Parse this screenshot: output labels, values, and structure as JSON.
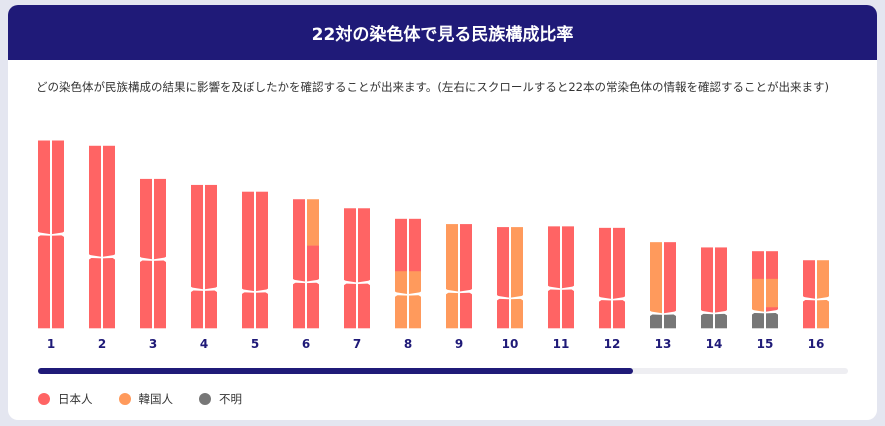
{
  "title": "22対の染色体で見る民族構成比率",
  "description": "どの染色体が民族構成の結果に影響を及ぼしたかを確認することが出来ます。(左右にスクロールすると22本の常染色体の情報を確認することが出来ます)",
  "colors": {
    "japanese": "#ff6464",
    "korean": "#ff9a5c",
    "unknown": "#777777",
    "header": "#1f1a78"
  },
  "legend": [
    {
      "key": "japanese",
      "label": "日本人"
    },
    {
      "key": "korean",
      "label": "韓国人"
    },
    {
      "key": "unknown",
      "label": "不明"
    }
  ],
  "scroll": {
    "visible_fraction": 0.734,
    "position": 0
  },
  "chart_data": {
    "type": "chromosome-ancestry",
    "length_unit": "Mb",
    "chromosomes": [
      {
        "label": "1",
        "length": 249,
        "centromere": 0.5,
        "chromatids": [
          [
            [
              "japanese",
              1
            ]
          ],
          [
            [
              "japanese",
              1
            ]
          ]
        ]
      },
      {
        "label": "2",
        "length": 242,
        "centromere": 0.61,
        "chromatids": [
          [
            [
              "japanese",
              1
            ]
          ],
          [
            [
              "japanese",
              1
            ]
          ]
        ]
      },
      {
        "label": "3",
        "length": 198,
        "centromere": 0.54,
        "chromatids": [
          [
            [
              "japanese",
              1
            ]
          ],
          [
            [
              "japanese",
              1
            ]
          ]
        ]
      },
      {
        "label": "4",
        "length": 190,
        "centromere": 0.73,
        "chromatids": [
          [
            [
              "japanese",
              1
            ]
          ],
          [
            [
              "japanese",
              1
            ]
          ]
        ]
      },
      {
        "label": "5",
        "length": 181,
        "centromere": 0.73,
        "chromatids": [
          [
            [
              "japanese",
              1
            ]
          ],
          [
            [
              "japanese",
              1
            ]
          ]
        ]
      },
      {
        "label": "6",
        "length": 171,
        "centromere": 0.64,
        "chromatids": [
          [
            [
              "japanese",
              1
            ]
          ],
          [
            [
              "korean",
              0.36
            ],
            [
              "japanese",
              1
            ]
          ]
        ]
      },
      {
        "label": "7",
        "length": 159,
        "centromere": 0.62,
        "chromatids": [
          [
            [
              "japanese",
              1
            ]
          ],
          [
            [
              "japanese",
              1
            ]
          ]
        ]
      },
      {
        "label": "8",
        "length": 145,
        "centromere": 0.69,
        "chromatids": [
          [
            [
              "japanese",
              0.48
            ],
            [
              "korean",
              1
            ]
          ],
          [
            [
              "japanese",
              0.48
            ],
            [
              "korean",
              1
            ]
          ]
        ]
      },
      {
        "label": "9",
        "length": 138,
        "centromere": 0.65,
        "chromatids": [
          [
            [
              "korean",
              1
            ]
          ],
          [
            [
              "japanese",
              1
            ]
          ]
        ]
      },
      {
        "label": "10",
        "length": 134,
        "centromere": 0.7,
        "chromatids": [
          [
            [
              "japanese",
              1
            ]
          ],
          [
            [
              "korean",
              1
            ]
          ]
        ]
      },
      {
        "label": "11",
        "length": 135,
        "centromere": 0.61,
        "chromatids": [
          [
            [
              "japanese",
              1
            ]
          ],
          [
            [
              "japanese",
              1
            ]
          ]
        ]
      },
      {
        "label": "12",
        "length": 133,
        "centromere": 0.71,
        "chromatids": [
          [
            [
              "japanese",
              1
            ]
          ],
          [
            [
              "japanese",
              1
            ]
          ]
        ]
      },
      {
        "label": "13",
        "length": 114,
        "centromere": 0.83,
        "chromatids": [
          [
            [
              "korean",
              0.83
            ],
            [
              "unknown",
              1
            ]
          ],
          [
            [
              "japanese",
              0.83
            ],
            [
              "unknown",
              1
            ]
          ]
        ]
      },
      {
        "label": "14",
        "length": 107,
        "centromere": 0.81,
        "chromatids": [
          [
            [
              "japanese",
              0.81
            ],
            [
              "unknown",
              1
            ]
          ],
          [
            [
              "japanese",
              0.81
            ],
            [
              "unknown",
              1
            ]
          ]
        ]
      },
      {
        "label": "15",
        "length": 102,
        "centromere": 0.79,
        "chromatids": [
          [
            [
              "japanese",
              0.36
            ],
            [
              "korean",
              0.79
            ],
            [
              "unknown",
              1
            ]
          ],
          [
            [
              "japanese",
              0.36
            ],
            [
              "korean",
              0.73
            ],
            [
              "japanese",
              0.79
            ],
            [
              "unknown",
              1
            ]
          ]
        ]
      },
      {
        "label": "16",
        "length": 90,
        "centromere": 0.57,
        "chromatids": [
          [
            [
              "japanese",
              1
            ]
          ],
          [
            [
              "korean",
              1
            ]
          ]
        ]
      }
    ]
  }
}
